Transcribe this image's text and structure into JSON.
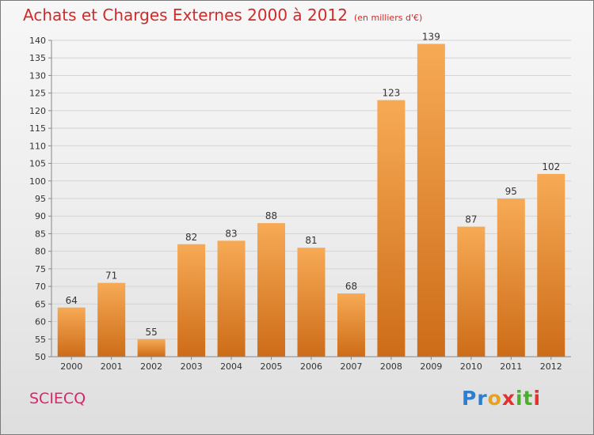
{
  "header": {
    "title": "Achats et Charges Externes 2000 à 2012",
    "subtitle": "(en milliers d'€)"
  },
  "footer": {
    "commune": "SCIECQ",
    "brand": "Proxiti"
  },
  "colors": {
    "title": "#d02a2a",
    "commune": "#d6276a",
    "bar_light": "#f7aa55",
    "bar_dark": "#cd6c18",
    "grid": "#d4d4d4"
  },
  "chart_data": {
    "type": "bar",
    "categories": [
      "2000",
      "2001",
      "2002",
      "2003",
      "2004",
      "2005",
      "2006",
      "2007",
      "2008",
      "2009",
      "2010",
      "2011",
      "2012"
    ],
    "values": [
      64,
      71,
      55,
      82,
      83,
      88,
      81,
      68,
      123,
      139,
      87,
      95,
      102
    ],
    "ylim": [
      50,
      140
    ],
    "yticks": [
      50,
      55,
      60,
      65,
      70,
      75,
      80,
      85,
      90,
      95,
      100,
      105,
      110,
      115,
      120,
      125,
      130,
      135,
      140
    ],
    "grid": true,
    "data_labels": true
  }
}
